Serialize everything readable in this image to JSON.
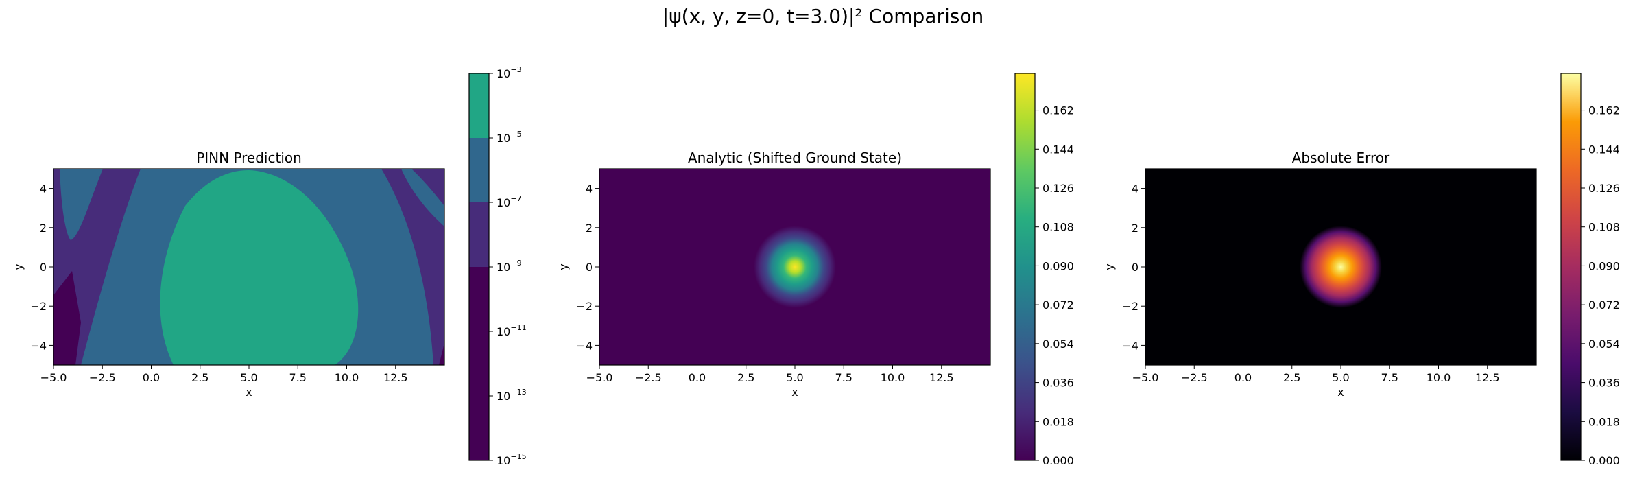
{
  "figure": {
    "suptitle": "|ψ(x, y, z=0, t=3.0)|² Comparison"
  },
  "chart_data": [
    {
      "type": "heatmap",
      "subtype": "filled-contour",
      "title": "PINN Prediction",
      "xlabel": "x",
      "ylabel": "y",
      "xlim": [
        -5,
        15
      ],
      "ylim": [
        -5,
        5
      ],
      "x_ticks": [
        "−5.0",
        "−2.5",
        "0.0",
        "2.5",
        "5.0",
        "7.5",
        "10.0",
        "12.5"
      ],
      "x_tick_values": [
        -5,
        -2.5,
        0,
        2.5,
        5,
        7.5,
        10,
        12.5
      ],
      "y_ticks": [
        "4",
        "2",
        "0",
        "−2",
        "−4"
      ],
      "y_tick_values": [
        4,
        2,
        0,
        -2,
        -4
      ],
      "color_scale": "log",
      "colormap": "viridis",
      "colorbar": {
        "range": [
          1e-15,
          0.001
        ],
        "levels": [
          1e-15,
          1e-09,
          1e-07,
          1e-05,
          0.001
        ],
        "level_colors": [
          "#440154",
          "#472c7a",
          "#30678d",
          "#21a685"
        ],
        "tick_bases": [
          "10",
          "10",
          "10",
          "10",
          "10",
          "10",
          "10"
        ],
        "tick_exponents": [
          "−3",
          "−5",
          "−7",
          "−9",
          "−11",
          "−13",
          "−15"
        ],
        "tick_values": [
          0.001,
          1e-05,
          1e-07,
          1e-09,
          1e-11,
          1e-13,
          1e-15
        ]
      },
      "regions": [
        {
          "level_range": [
            1e-05,
            0.001
          ],
          "description": "central blob",
          "x_range": [
            0.8,
            10.8
          ],
          "y_range": [
            -5,
            4.9
          ]
        },
        {
          "level_range": [
            1e-07,
            1e-05
          ],
          "description": "broad band around center"
        },
        {
          "level_range": [
            1e-09,
            1e-07
          ],
          "description": "outer curved bands"
        },
        {
          "level_range": [
            1e-15,
            1e-09
          ],
          "description": "edge corners"
        }
      ]
    },
    {
      "type": "heatmap",
      "title": "Analytic (Shifted Ground State)",
      "xlabel": "x",
      "ylabel": "y",
      "xlim": [
        -5,
        15
      ],
      "ylim": [
        -5,
        5
      ],
      "x_ticks": [
        "−5.0",
        "−2.5",
        "0.0",
        "2.5",
        "5.0",
        "7.5",
        "10.0",
        "12.5"
      ],
      "x_tick_values": [
        -5,
        -2.5,
        0,
        2.5,
        5,
        7.5,
        10,
        12.5
      ],
      "y_ticks": [
        "4",
        "2",
        "0",
        "−2",
        "−4"
      ],
      "y_tick_values": [
        4,
        2,
        0,
        -2,
        -4
      ],
      "colormap": "viridis",
      "peak": {
        "x": 5,
        "y": 0,
        "value": 0.179,
        "sigma": 0.7
      },
      "colorbar": {
        "range": [
          0,
          0.179
        ],
        "ticks": [
          "0.162",
          "0.144",
          "0.126",
          "0.108",
          "0.090",
          "0.072",
          "0.054",
          "0.036",
          "0.018",
          "0.000"
        ],
        "tick_values": [
          0.162,
          0.144,
          0.126,
          0.108,
          0.09,
          0.072,
          0.054,
          0.036,
          0.018,
          0
        ]
      }
    },
    {
      "type": "heatmap",
      "title": "Absolute Error",
      "xlabel": "x",
      "ylabel": "y",
      "xlim": [
        -5,
        15
      ],
      "ylim": [
        -5,
        5
      ],
      "x_ticks": [
        "−5.0",
        "−2.5",
        "0.0",
        "2.5",
        "5.0",
        "7.5",
        "10.0",
        "12.5"
      ],
      "x_tick_values": [
        -5,
        -2.5,
        0,
        2.5,
        5,
        7.5,
        10,
        12.5
      ],
      "y_ticks": [
        "4",
        "2",
        "0",
        "−2",
        "−4"
      ],
      "y_tick_values": [
        4,
        2,
        0,
        -2,
        -4
      ],
      "colormap": "inferno",
      "peak": {
        "x": 5,
        "y": 0,
        "value": 0.179,
        "sigma": 0.7
      },
      "colorbar": {
        "range": [
          0,
          0.179
        ],
        "ticks": [
          "0.162",
          "0.144",
          "0.126",
          "0.108",
          "0.090",
          "0.072",
          "0.054",
          "0.036",
          "0.018",
          "0.000"
        ],
        "tick_values": [
          0.162,
          0.144,
          0.126,
          0.108,
          0.09,
          0.072,
          0.054,
          0.036,
          0.018,
          0
        ]
      }
    }
  ]
}
